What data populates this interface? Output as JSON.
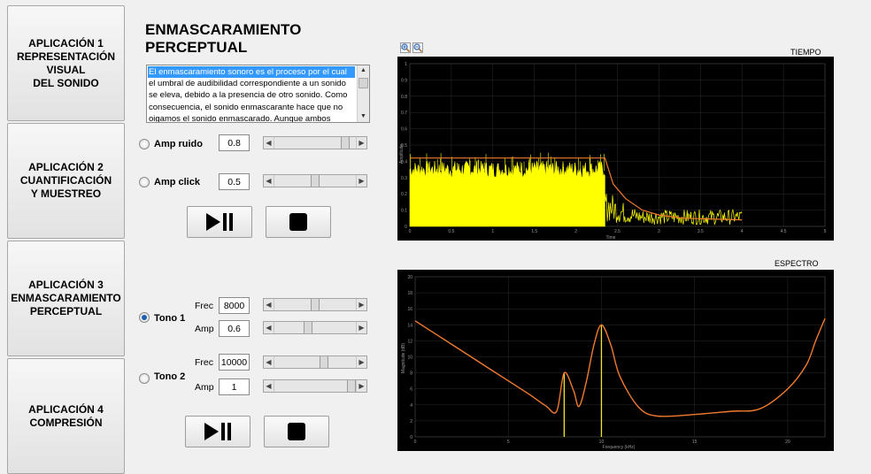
{
  "nav": [
    {
      "label": "APLICACIÓN 1\nREPRESENTACIÓN\nVISUAL\nDEL SONIDO"
    },
    {
      "label": "APLICACIÓN 2\nCUANTIFICACIÓN\nY MUESTREO"
    },
    {
      "label": "APLICACIÓN 3\nENMASCARAMIENTO\nPERCEPTUAL"
    },
    {
      "label": "APLICACIÓN 4\nCOMPRESIÓN"
    }
  ],
  "title": "ENMASCARAMIENTO\nPERCEPTUAL",
  "description": {
    "lines": [
      "El enmascaramiento sonoro es el proceso por el cual",
      "el umbral de audibilidad correspondiente a un sonido",
      "se eleva, debido a la presencia de otro sonido. Como",
      "consecuencia, el sonido enmascarante hace que no",
      "oigamos el sonido enmascarado. Aunque ambos"
    ]
  },
  "controls": {
    "amp_ruido": {
      "label": "Amp ruido",
      "value": "0.8",
      "level": 0.92
    },
    "amp_click": {
      "label": "Amp click",
      "value": "0.5",
      "level": 0.5
    },
    "tono1": {
      "label": "Tono 1",
      "frec_label": "Frec",
      "frec_value": "8000",
      "frec_level": 0.5,
      "amp_label": "Amp",
      "amp_value": "0.6",
      "amp_level": 0.4
    },
    "tono2": {
      "label": "Tono 2",
      "frec_label": "Frec",
      "frec_value": "10000",
      "frec_level": 0.62,
      "amp_label": "Amp",
      "amp_value": "1",
      "amp_level": 1.0
    }
  },
  "selected_radio": "tono1",
  "plots": {
    "tiempo": {
      "caption": "TIEMPO"
    },
    "espectro": {
      "caption": "ESPECTRO"
    }
  },
  "chart_data": [
    {
      "type": "line",
      "title": "TIEMPO",
      "xlabel": "Time",
      "ylabel": "Amplitude",
      "xlim": [
        0,
        5
      ],
      "ylim": [
        0,
        1
      ],
      "xticks": [
        "0",
        "0.5",
        "1",
        "1.5",
        "2",
        "2.5",
        "3",
        "3.5",
        "4",
        "4.5",
        "5"
      ],
      "yticks": [
        "0",
        "0.1",
        "0.2",
        "0.3",
        "0.4",
        "0.5",
        "0.6",
        "0.7",
        "0.8",
        "0.9",
        "1"
      ],
      "series": [
        {
          "color": "#ffff00",
          "segments": [
            {
              "x": [
                0,
                2.35
              ],
              "level": 0.38
            },
            {
              "x": [
                2.35,
                4.0
              ],
              "level": 0.05
            }
          ]
        },
        {
          "color": "#f07b2f",
          "envelope": {
            "x": [
              0,
              2.35,
              2.45,
              2.6,
              2.8,
              3.0,
              3.3,
              4.0
            ],
            "y": [
              0.42,
              0.42,
              0.26,
              0.17,
              0.1,
              0.07,
              0.05,
              0.04
            ]
          }
        }
      ]
    },
    {
      "type": "line",
      "title": "ESPECTRO",
      "xlabel": "Frequency (kHz)",
      "ylabel": "Magnitude (dB)",
      "xlim": [
        0,
        22
      ],
      "ylim": [
        0,
        20
      ],
      "xticks": [
        "0",
        "5",
        "10",
        "15",
        "20"
      ],
      "yticks": [
        "0",
        "2",
        "4",
        "6",
        "8",
        "10",
        "12",
        "14",
        "16",
        "18",
        "20"
      ],
      "series": [
        {
          "color": "#f07b2f",
          "x": [
            0,
            2,
            4,
            6,
            7,
            7.6,
            8,
            8.5,
            8.8,
            9.2,
            9.6,
            10,
            10.5,
            11,
            12,
            13,
            15,
            17,
            18.5,
            20,
            21,
            21.5,
            22
          ],
          "y": [
            14.5,
            11.5,
            8.5,
            5.5,
            3.9,
            3.2,
            8,
            5.8,
            3.8,
            7,
            11.5,
            14,
            11.5,
            7.5,
            3.7,
            2.6,
            2.8,
            3.2,
            3.5,
            6,
            9,
            12,
            14.8
          ]
        },
        {
          "color": "#f2e52a",
          "stems": [
            {
              "x": 8,
              "y": 8
            },
            {
              "x": 10,
              "y": 14
            }
          ]
        }
      ]
    }
  ]
}
